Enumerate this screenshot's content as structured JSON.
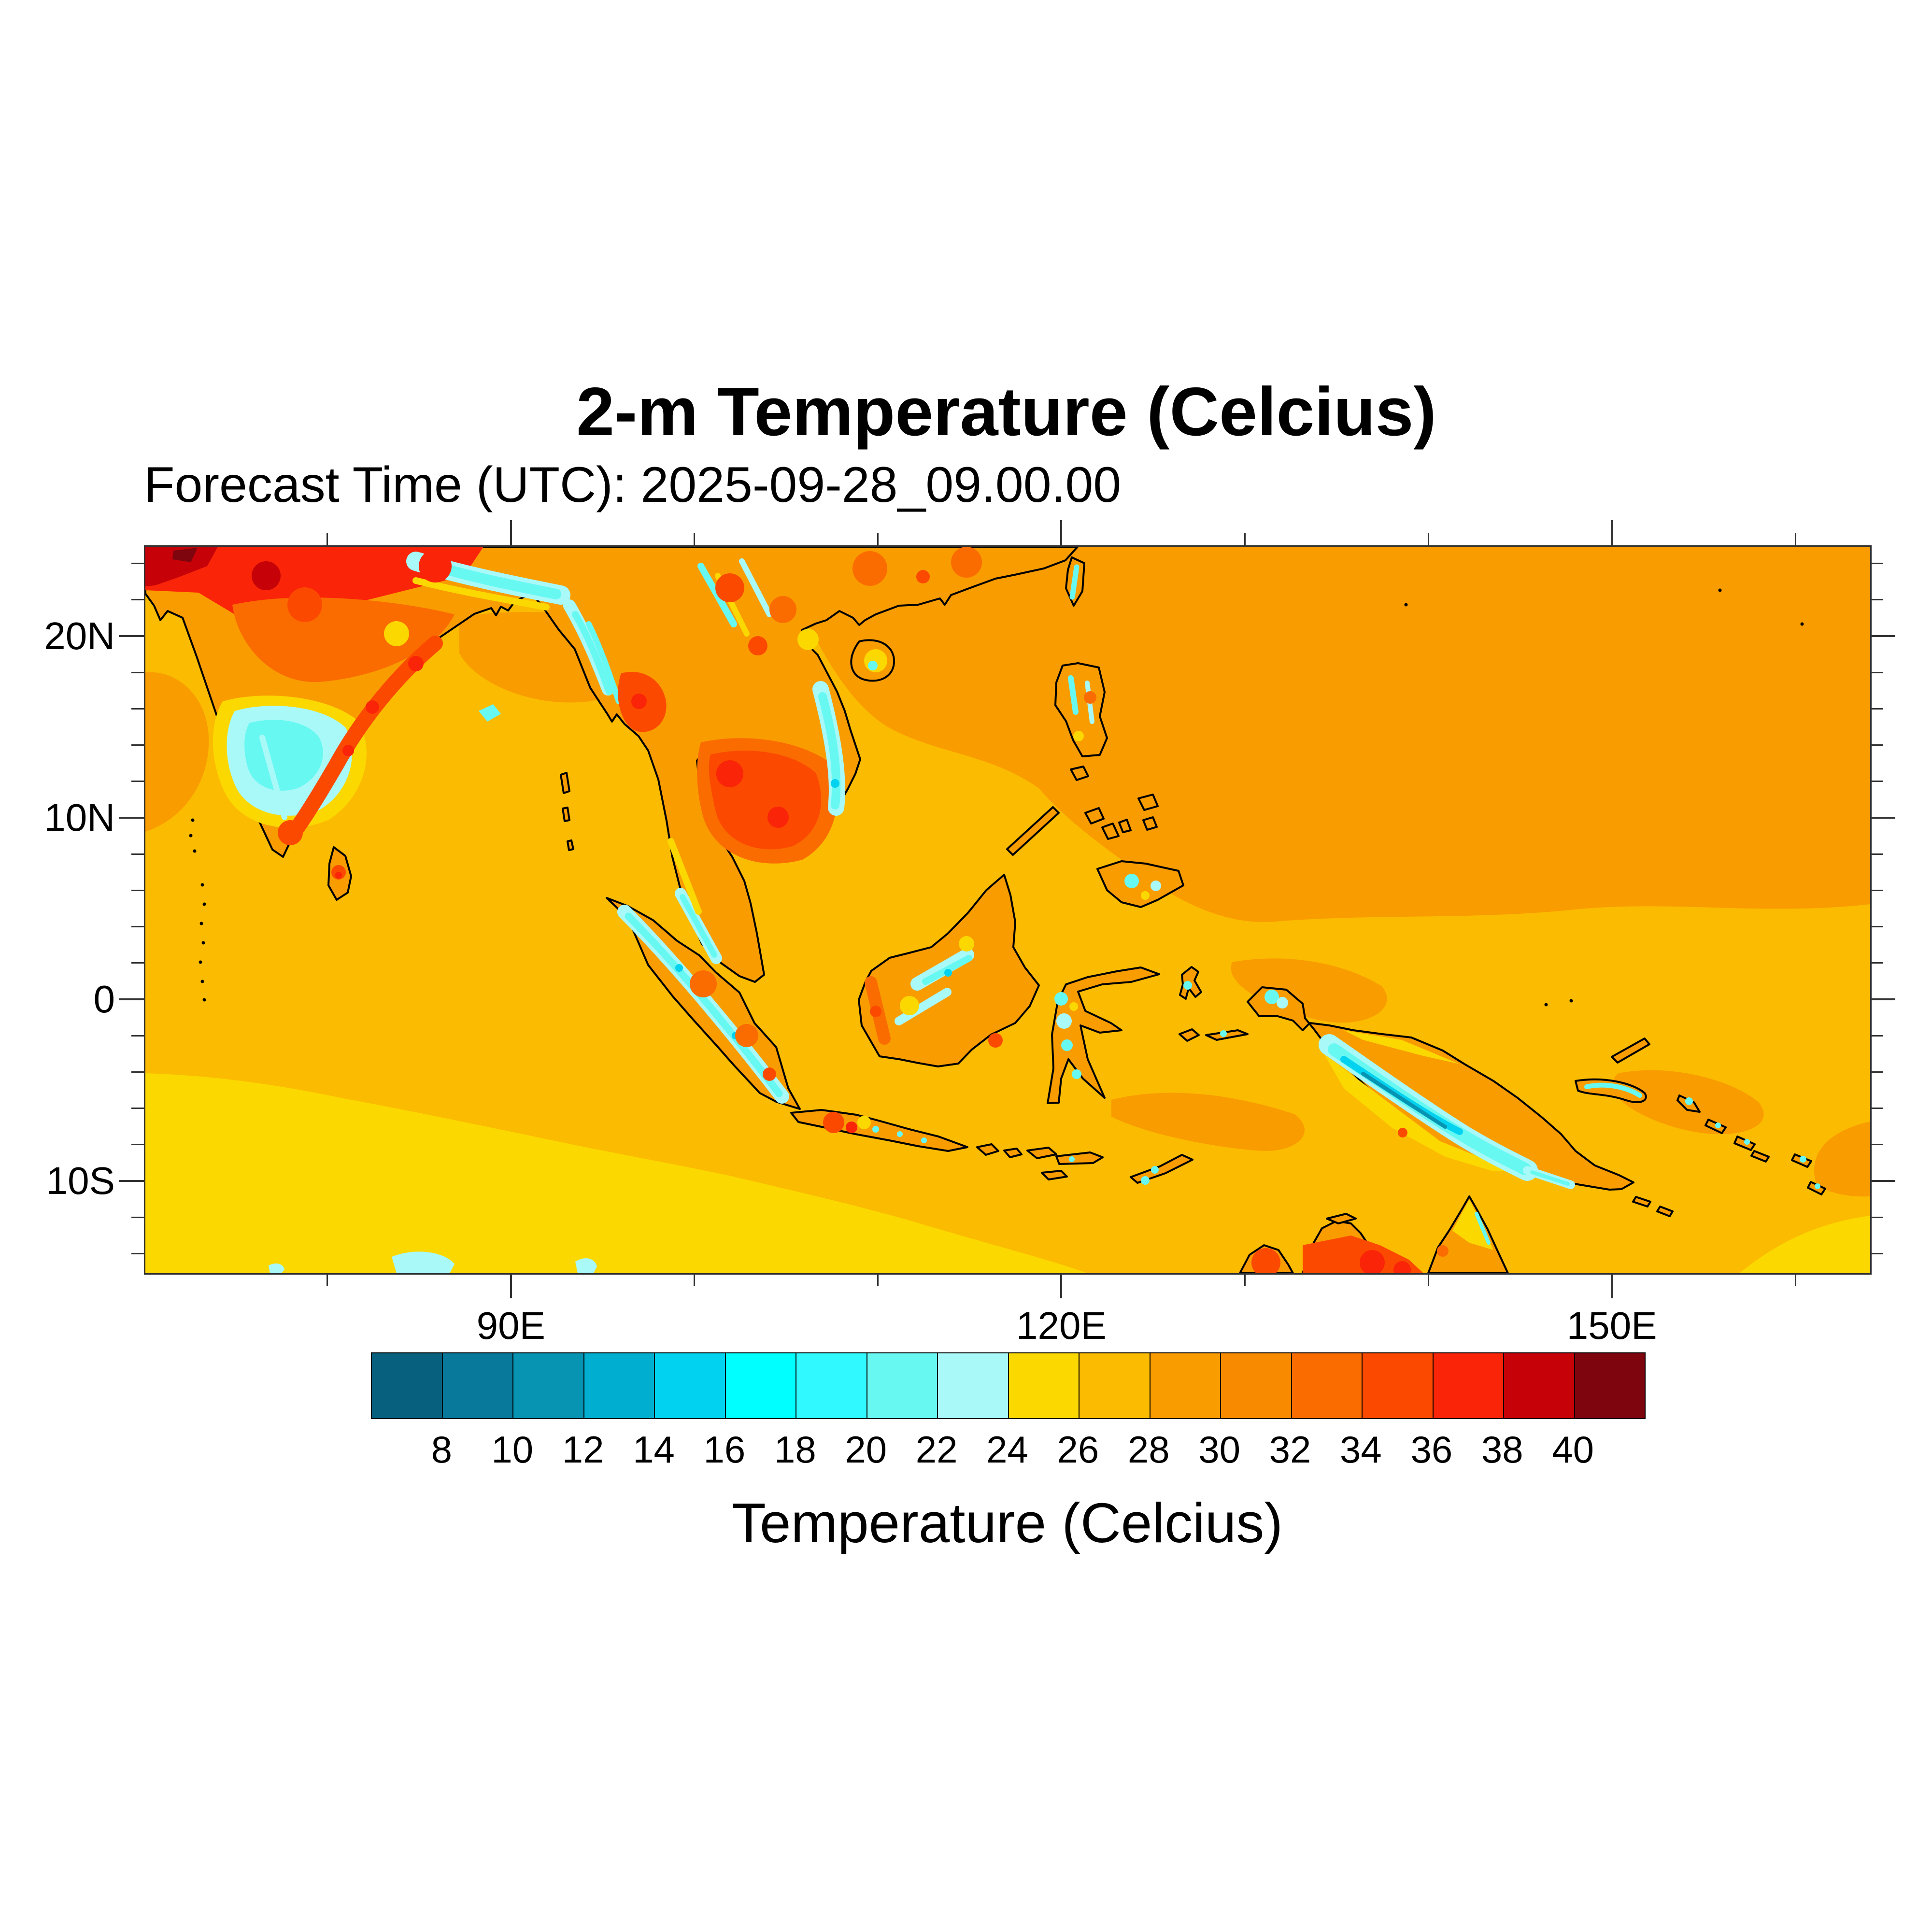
{
  "title": "2-m Temperature (Celcius)",
  "subtitle": "Forecast Time (UTC): 2025-09-28_09.00.00",
  "chart_data": {
    "type": "heatmap",
    "title": "2-m Temperature (Celcius)",
    "subtitle": "Forecast Time (UTC): 2025-09-28_09.00.00",
    "projection": "lat-lon",
    "lon_range": [
      70,
      164
    ],
    "lat_range": [
      -15,
      25
    ],
    "grid": "off",
    "x_axis": {
      "major_ticks": [
        {
          "label": "90E",
          "lon": 90
        },
        {
          "label": "120E",
          "lon": 120
        },
        {
          "label": "150E",
          "lon": 150
        }
      ],
      "minor_tick_lons": [
        80,
        100,
        110,
        130,
        140,
        160
      ]
    },
    "y_axis": {
      "major_ticks": [
        {
          "label": "20N",
          "lat": 20
        },
        {
          "label": "10N",
          "lat": 10
        },
        {
          "label": "0",
          "lat": 0
        },
        {
          "label": "10S",
          "lat": -10
        }
      ],
      "minor_tick_step_deg": 2
    },
    "colorbar": {
      "label": "Temperature (Celcius)",
      "units": "C",
      "boundary_labels": [
        8,
        10,
        12,
        14,
        16,
        18,
        20,
        22,
        24,
        26,
        28,
        30,
        32,
        34,
        36,
        38,
        40
      ],
      "cell_ranges": [
        "<8",
        "8-10",
        "10-12",
        "12-14",
        "14-16",
        "16-18",
        "18-20",
        "20-22",
        "22-24",
        "24-26",
        "26-28",
        "28-30",
        "30-32",
        "32-34",
        "34-36",
        "36-38",
        "38-40",
        ">40"
      ],
      "cell_colors": [
        "#06607E",
        "#08799B",
        "#0793B2",
        "#00AFD0",
        "#00D2F0",
        "#00FFFF",
        "#30FAFF",
        "#68F8F2",
        "#A9F9F9",
        "#FBD800",
        "#FBBB00",
        "#F99C00",
        "#F88A00",
        "#FA6C00",
        "#FB4A00",
        "#FA2408",
        "#C60208",
        "#7E040E"
      ]
    },
    "field_summary": [
      {
        "region": "Pakistan / NW India (map NW corner)",
        "approx_temp_c": "36-40+"
      },
      {
        "region": "Indo-Gangetic Plain, N India",
        "approx_temp_c": "32-38"
      },
      {
        "region": "Deccan interior, India",
        "approx_temp_c": "16-24"
      },
      {
        "region": "India SE coastal strip & Sri Lanka interior",
        "approx_temp_c": "32-36"
      },
      {
        "region": "Himalaya / SW China / Arakan mountains",
        "approx_temp_c": "12-22"
      },
      {
        "region": "Central Thailand - Cambodia",
        "approx_temp_c": "32-38"
      },
      {
        "region": "Annamite Range, Vietnam",
        "approx_temp_c": "16-24"
      },
      {
        "region": "South China Sea / W Pacific north of ~5N",
        "approx_temp_c": "28-30"
      },
      {
        "region": "Equatorial seas (Maritime Continent)",
        "approx_temp_c": "26-28"
      },
      {
        "region": "S Indian Ocean south of ~5S",
        "approx_temp_c": "24-26"
      },
      {
        "region": "Sumatra / Borneo / Philippines mountain spines",
        "approx_temp_c": "14-24"
      },
      {
        "region": "New Guinea central range core",
        "approx_temp_c": "8-14"
      },
      {
        "region": "N Australia interior (bottom edge)",
        "approx_temp_c": "32-38"
      }
    ]
  }
}
